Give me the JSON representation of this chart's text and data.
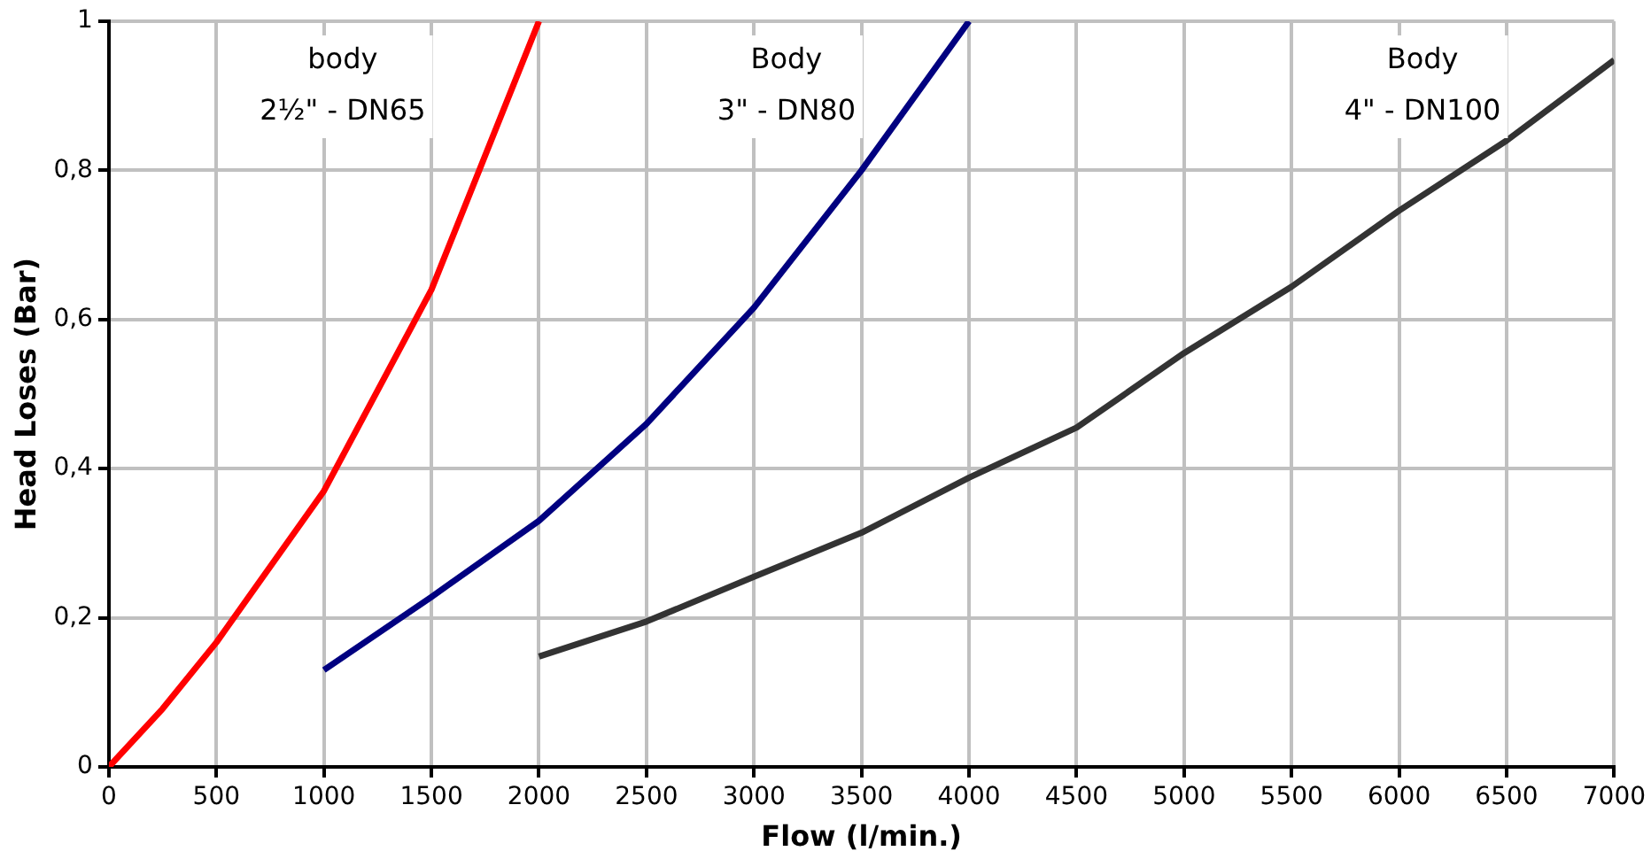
{
  "chart_data": {
    "type": "line",
    "xlabel": "Flow (l/min.)",
    "ylabel": "Head Loses (Bar)",
    "xlim": [
      0,
      7000
    ],
    "xticks": [
      0,
      500,
      1000,
      1500,
      2000,
      2500,
      3000,
      3500,
      4000,
      4500,
      5000,
      5500,
      6000,
      6500,
      7000
    ],
    "ylim": [
      0,
      1
    ],
    "yticks": [
      {
        "value": 0,
        "label": "0"
      },
      {
        "value": 0.2,
        "label": "0,2"
      },
      {
        "value": 0.4,
        "label": "0,4"
      },
      {
        "value": 0.6,
        "label": "0,6"
      },
      {
        "value": 0.8,
        "label": "0,8"
      },
      {
        "value": 1,
        "label": "1"
      }
    ],
    "grid": true,
    "legend": false,
    "marker": "none",
    "line_style": "solid",
    "series": [
      {
        "name": "body\n2½\" - DN65",
        "color": "#ff0000",
        "x": [
          0,
          250,
          500,
          1000,
          1500,
          2000
        ],
        "values": [
          0,
          0.078,
          0.167,
          0.37,
          0.64,
          1
        ]
      },
      {
        "name": "Body\n3\" - DN80",
        "color": "#000080",
        "x": [
          1000,
          1500,
          2000,
          2500,
          3000,
          3500,
          4000
        ],
        "values": [
          0.13,
          0.228,
          0.33,
          0.46,
          0.616,
          0.8,
          1
        ]
      },
      {
        "name": "Body\n4\" - DN100",
        "color": "#333333",
        "x": [
          2000,
          2500,
          3000,
          3500,
          4000,
          4500,
          5000,
          5500,
          6000,
          6500,
          7000
        ],
        "values": [
          0.148,
          0.195,
          0.255,
          0.314,
          0.388,
          0.455,
          0.555,
          0.644,
          0.746,
          0.84,
          0.948
        ]
      }
    ]
  }
}
